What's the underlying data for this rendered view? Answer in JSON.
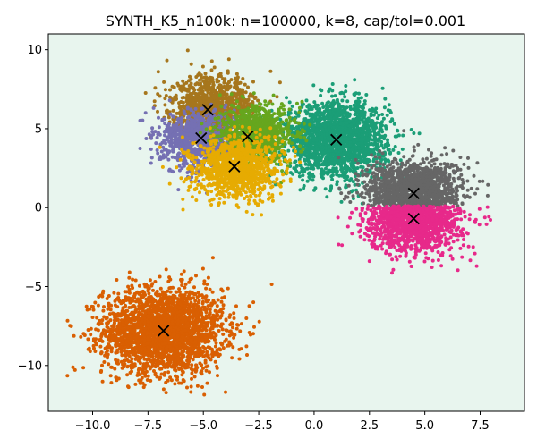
{
  "chart_data": {
    "type": "scatter",
    "title": "SYNTH_K5_n100k: n=100000, k=8, cap/tol=0.001",
    "xlabel": "",
    "ylabel": "",
    "xlim": [
      -12,
      9.5
    ],
    "ylim": [
      -12.9,
      11
    ],
    "grid": false,
    "legend": "none",
    "background_color": "#e8f5ee",
    "x_ticks": [
      -10.0,
      -7.5,
      -5.0,
      -2.5,
      0.0,
      2.5,
      5.0,
      7.5
    ],
    "x_tick_labels": [
      "−10.0",
      "−7.5",
      "−5.0",
      "−2.5",
      "0.0",
      "2.5",
      "5.0",
      "7.5"
    ],
    "y_ticks": [
      10,
      5,
      0,
      -5,
      -10
    ],
    "y_tick_labels": [
      "10",
      "5",
      "0",
      "−5",
      "−10"
    ],
    "clusters": [
      {
        "color": "#a6761d",
        "centroid": [
          -4.8,
          6.2
        ]
      },
      {
        "color": "#7570b3",
        "centroid": [
          -5.1,
          4.4
        ]
      },
      {
        "color": "#66a61e",
        "centroid": [
          -3.0,
          4.5
        ]
      },
      {
        "color": "#e6ab02",
        "centroid": [
          -3.6,
          2.6
        ]
      },
      {
        "color": "#1b9e77",
        "centroid": [
          1.0,
          4.3
        ]
      },
      {
        "color": "#666666",
        "centroid": [
          4.5,
          0.9
        ]
      },
      {
        "color": "#e7298a",
        "centroid": [
          4.5,
          -0.7
        ]
      },
      {
        "color": "#d95f02",
        "centroid": [
          -6.8,
          -7.8
        ]
      }
    ],
    "centroid_marker": "x"
  }
}
